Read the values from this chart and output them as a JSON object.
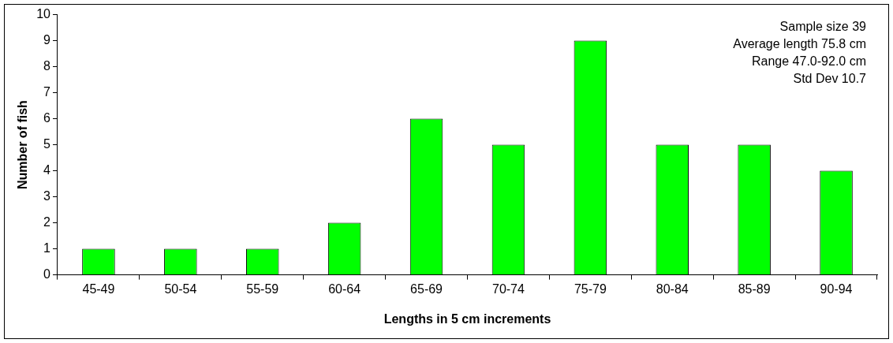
{
  "chart_data": {
    "type": "bar",
    "xlabel": "Lengths in 5 cm increments",
    "ylabel": "Number of fish",
    "categories": [
      "45-49",
      "50-54",
      "55-59",
      "60-64",
      "65-69",
      "70-74",
      "75-79",
      "80-84",
      "85-89",
      "90-94"
    ],
    "values": [
      1,
      1,
      1,
      2,
      6,
      5,
      9,
      5,
      5,
      4
    ],
    "color": "#00ff00",
    "ylim": [
      0,
      10
    ],
    "yticks": [
      0,
      1,
      2,
      3,
      4,
      5,
      6,
      7,
      8,
      9,
      10
    ],
    "grid": false,
    "legend": false,
    "annotations": [
      "Sample size 39",
      "Average length 75.8 cm",
      "Range 47.0-92.0 cm",
      "Std Dev 10.7"
    ]
  }
}
